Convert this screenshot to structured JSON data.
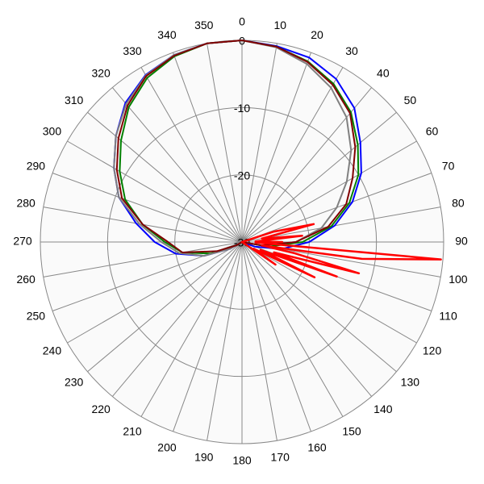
{
  "chart_data": {
    "type": "polar",
    "x": [
      0,
      10,
      20,
      30,
      40,
      50,
      60,
      70,
      80,
      90,
      100,
      110,
      120,
      130,
      140,
      150,
      160,
      170,
      180,
      190,
      200,
      210,
      220,
      230,
      240,
      250,
      260,
      270,
      280,
      290,
      300,
      310,
      320,
      330,
      340,
      350
    ],
    "xticks": [
      0,
      10,
      20,
      30,
      40,
      50,
      60,
      70,
      80,
      90,
      100,
      110,
      120,
      130,
      140,
      150,
      160,
      170,
      180,
      190,
      200,
      210,
      220,
      230,
      240,
      250,
      260,
      270,
      280,
      290,
      300,
      310,
      320,
      330,
      340,
      350
    ],
    "ylim": [
      -30,
      0
    ],
    "yticks": [
      -30,
      -20,
      -10,
      0
    ],
    "grid": true,
    "series": [
      {
        "color": "#0000ff",
        "values": [
          0,
          -0.4,
          -0.8,
          -2,
          -4,
          -7,
          -9.5,
          -12.5,
          -16,
          -20,
          -24,
          -28,
          -30,
          -30,
          -30,
          -30,
          -30,
          -30,
          -30,
          -30,
          -30,
          -30,
          -30,
          -30,
          -28,
          -24,
          -20,
          -17,
          -14,
          -10.5,
          -8,
          -5.5,
          -3,
          -1.3,
          -0.4,
          0
        ]
      },
      {
        "color": "#008000",
        "values": [
          0,
          -0.5,
          -1.4,
          -2.8,
          -4.8,
          -7.5,
          -10,
          -13,
          -16.5,
          -21,
          -26,
          -30,
          -30,
          -30,
          -30,
          -30,
          -30,
          -30,
          -30,
          -30,
          -30,
          -30,
          -30,
          -30,
          -29,
          -25,
          -21,
          -18.5,
          -15,
          -11.5,
          -9,
          -6.5,
          -3.8,
          -1.8,
          -0.6,
          0
        ]
      },
      {
        "color": "#808080",
        "values": [
          0,
          -0.6,
          -1.8,
          -3.5,
          -5.8,
          -8.8,
          -12,
          -15,
          -18,
          -22,
          -27,
          -30,
          -30,
          -30,
          -30,
          -30,
          -30,
          -30,
          -30,
          -30,
          -30,
          -30,
          -30,
          -30,
          -28,
          -24,
          -20.5,
          -18,
          -14.5,
          -10.5,
          -8,
          -5.5,
          -3.2,
          -1.4,
          -0.4,
          0
        ]
      },
      {
        "color": "#800000",
        "values": [
          0,
          -0.5,
          -1.5,
          -3,
          -5,
          -8,
          -11,
          -13.5,
          -17,
          -22,
          -27,
          -30,
          -30,
          -30,
          -30,
          -30,
          -30,
          -30,
          -30,
          -30,
          -30,
          -30,
          -30,
          -30,
          -29,
          -26,
          -21,
          -19,
          -15,
          -11,
          -8.5,
          -6,
          -3.5,
          -1.5,
          -0.5,
          0
        ]
      },
      {
        "color": "#ff0000",
        "x": [
          60,
          72,
          76,
          80,
          84,
          88,
          90,
          92,
          95,
          98,
          100,
          102,
          105,
          108,
          110,
          113,
          116,
          120,
          124,
          130
        ],
        "values": [
          -30,
          -25,
          -19,
          -27,
          -21,
          -28,
          -24,
          -28,
          -0.3,
          -12,
          -27,
          -22,
          -12,
          -25,
          -15,
          -27,
          -18,
          -28,
          -24,
          -30
        ]
      }
    ]
  }
}
